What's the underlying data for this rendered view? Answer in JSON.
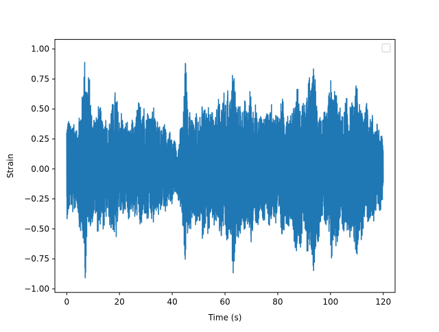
{
  "chart_data": {
    "type": "line",
    "title": "",
    "xlabel": "Time (s)",
    "ylabel": "Strain",
    "xlim": [
      -4.5,
      124.5
    ],
    "ylim": [
      -1.03,
      1.08
    ],
    "x_ticks": [
      0,
      20,
      40,
      60,
      80,
      100,
      120
    ],
    "x_tick_labels": [
      "0",
      "20",
      "40",
      "60",
      "80",
      "100",
      "120"
    ],
    "y_ticks": [
      -1.0,
      -0.75,
      -0.5,
      -0.25,
      0.0,
      0.25,
      0.5,
      0.75,
      1.0
    ],
    "y_tick_labels": [
      "−1.00",
      "−0.75",
      "−0.50",
      "−0.25",
      "0.00",
      "0.25",
      "0.50",
      "0.75",
      "1.00"
    ],
    "grid": false,
    "legend": {
      "placement": "upper-right",
      "entries": []
    },
    "series": [
      {
        "color": "#1f77b4",
        "x_range": [
          0,
          120
        ],
        "value_range": [
          -0.93,
          1.0
        ],
        "envelope": {
          "x": [
            0,
            2,
            4,
            5,
            7,
            8,
            10,
            12,
            13,
            16,
            18,
            20,
            22,
            24,
            26,
            28,
            30,
            32,
            34,
            36,
            38,
            40,
            42,
            44,
            45,
            46,
            48,
            50,
            52,
            54,
            56,
            58,
            60,
            62,
            63,
            65,
            66,
            68,
            70,
            72,
            74,
            76,
            78,
            80,
            82,
            84,
            86,
            87,
            88,
            90,
            92,
            94,
            96,
            98,
            100,
            102,
            104,
            106,
            108,
            110,
            112,
            114,
            116,
            118,
            120
          ],
          "upper": [
            0.43,
            0.46,
            0.38,
            0.54,
            1.0,
            0.9,
            0.45,
            0.62,
            0.5,
            0.42,
            0.74,
            0.52,
            0.44,
            0.38,
            0.46,
            0.7,
            0.52,
            0.55,
            0.48,
            0.4,
            0.36,
            0.3,
            0.18,
            0.48,
            0.95,
            0.56,
            0.48,
            0.5,
            0.62,
            0.56,
            0.5,
            0.64,
            0.68,
            0.68,
            0.95,
            0.55,
            0.62,
            0.58,
            0.7,
            0.52,
            0.48,
            0.55,
            0.54,
            0.52,
            0.62,
            0.5,
            0.58,
            0.8,
            0.62,
            0.58,
            0.82,
            0.88,
            0.5,
            0.48,
            0.8,
            0.7,
            0.5,
            0.62,
            0.56,
            0.76,
            0.58,
            0.6,
            0.46,
            0.4,
            0.3
          ],
          "lower": [
            -0.42,
            -0.38,
            -0.38,
            -0.52,
            -0.93,
            -0.6,
            -0.44,
            -0.55,
            -0.56,
            -0.45,
            -0.7,
            -0.42,
            -0.42,
            -0.42,
            -0.44,
            -0.52,
            -0.45,
            -0.5,
            -0.44,
            -0.38,
            -0.35,
            -0.3,
            -0.22,
            -0.55,
            -0.9,
            -0.62,
            -0.46,
            -0.55,
            -0.6,
            -0.55,
            -0.5,
            -0.6,
            -0.62,
            -0.7,
            -0.9,
            -0.62,
            -0.58,
            -0.55,
            -0.62,
            -0.5,
            -0.46,
            -0.5,
            -0.48,
            -0.5,
            -0.62,
            -0.48,
            -0.55,
            -0.82,
            -0.7,
            -0.6,
            -0.8,
            -0.9,
            -0.5,
            -0.48,
            -0.82,
            -0.72,
            -0.48,
            -0.65,
            -0.6,
            -0.78,
            -0.58,
            -0.55,
            -0.45,
            -0.4,
            -0.3
          ]
        }
      }
    ]
  }
}
